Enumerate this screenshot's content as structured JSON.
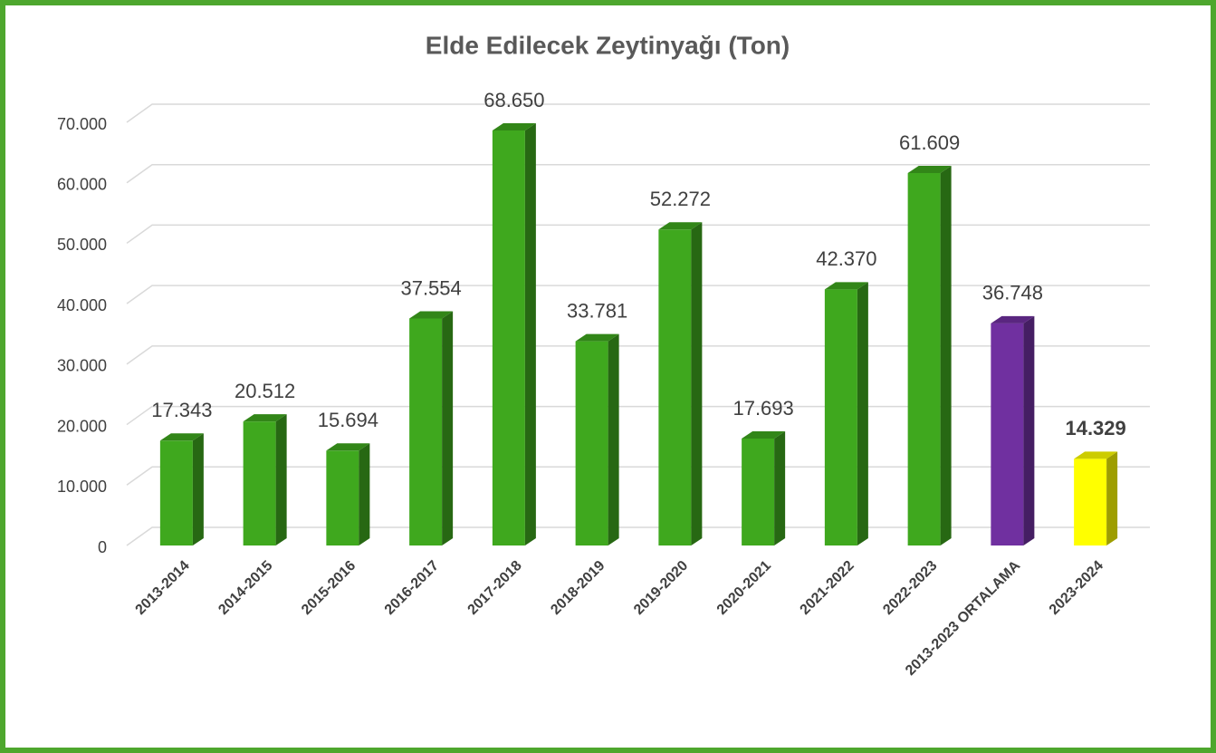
{
  "chart_data": {
    "type": "bar3d",
    "title": "Elde Edilecek Zeytinyağı (Ton)",
    "categories": [
      "2013-2014",
      "2014-2015",
      "2015-2016",
      "2016-2017",
      "2017-2018",
      "2018-2019",
      "2019-2020",
      "2020-2021",
      "2021-2022",
      "2022-2023",
      "2013-2023 ORTALAMA",
      "2023-2024"
    ],
    "values": [
      17343,
      20512,
      15694,
      37554,
      68650,
      33781,
      52272,
      17693,
      42370,
      61609,
      36748,
      14329
    ],
    "value_labels": [
      "17.343",
      "20.512",
      "15.694",
      "37.554",
      "68.650",
      "33.781",
      "52.272",
      "17.693",
      "42.370",
      "61.609",
      "36.748",
      "14.329"
    ],
    "value_label_weight": [
      "normal",
      "normal",
      "normal",
      "normal",
      "normal",
      "normal",
      "normal",
      "normal",
      "normal",
      "normal",
      "normal",
      "bold"
    ],
    "colors": [
      "#3fa81e",
      "#3fa81e",
      "#3fa81e",
      "#3fa81e",
      "#3fa81e",
      "#3fa81e",
      "#3fa81e",
      "#3fa81e",
      "#3fa81e",
      "#3fa81e",
      "#7030a0",
      "#ffff00"
    ],
    "ylim": [
      0,
      70000
    ],
    "yticks": [
      0,
      {
        "value": 10000,
        "label": "10.000"
      },
      {
        "value": 20000,
        "label": "20.000"
      },
      {
        "value": 30000,
        "label": "30.000"
      },
      {
        "value": 40000,
        "label": "40.000"
      },
      {
        "value": 50000,
        "label": "50.000"
      },
      {
        "value": 60000,
        "label": "60.000"
      },
      {
        "value": 70000,
        "label": "70.000"
      }
    ],
    "grid": true
  }
}
